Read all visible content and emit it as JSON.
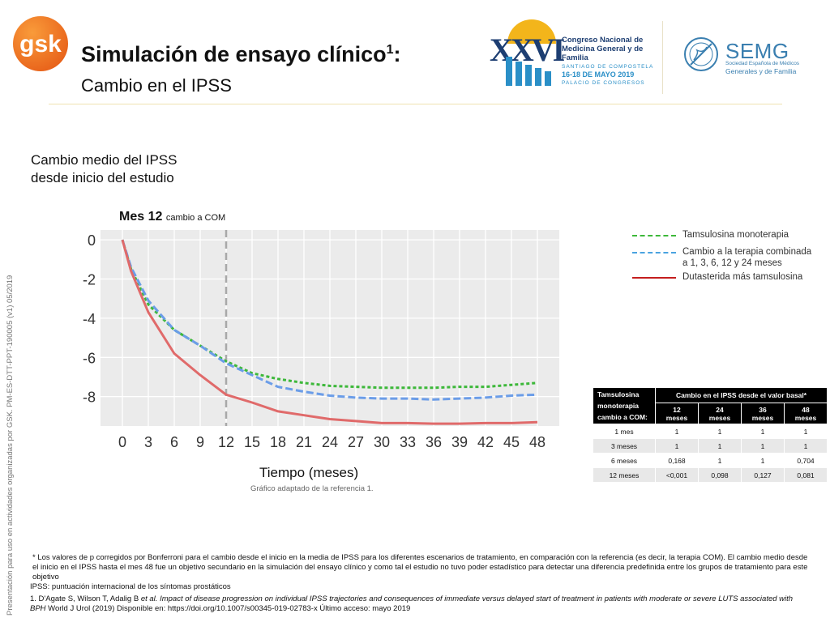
{
  "header": {
    "brand": "gsk",
    "title": "Simulación de ensayo clínico",
    "title_superscript": "1",
    "title_suffix": ":",
    "subtitle": "Cambio en el IPSS",
    "congress": {
      "number": "XXVI",
      "name": "Congreso Nacional de Medicina General y de Familia",
      "place": "SANTIAGO DE COMPOSTELA",
      "dates": "16-18 DE MAYO 2019",
      "venue": "PALACIO DE CONGRESOS"
    },
    "society": {
      "name": "SEMG",
      "subtitle_1": "Sociedad Española de Médicos",
      "subtitle_2": "Generales y de Familia"
    }
  },
  "side_note": "Presentación para uso en actividades organizadas por GSK. PM-ES-DTT-PPT-190005 (v1) 05/2019",
  "chart_heading_1": "Cambio medio del IPSS",
  "chart_heading_2": "desde inicio del estudio",
  "marker_label": {
    "bold": "Mes 12",
    "small": "cambio a COM"
  },
  "x_axis_title": "Tiempo (meses)",
  "source_note": "Gráfico adaptado de la referencia 1.",
  "colors": {
    "tamsulosina": "#3db83a",
    "cambio": "#6b9de8",
    "dutasterida": "#e06a6a",
    "legend_dutasterida": "#c41e1e",
    "plot_bg": "#ebebeb",
    "grid": "#ffffff",
    "vline": "#a8a8a8"
  },
  "chart_data": {
    "type": "line",
    "xlabel": "Tiempo (meses)",
    "ylabel": "",
    "xlim": [
      0,
      48
    ],
    "ylim": [
      -9.5,
      0.5
    ],
    "xticks": [
      0,
      3,
      6,
      9,
      12,
      15,
      18,
      21,
      24,
      27,
      30,
      33,
      36,
      39,
      42,
      45,
      48
    ],
    "yticks": [
      0,
      -2,
      -4,
      -6,
      -8
    ],
    "grid": true,
    "vline": 12,
    "legend_position": "right",
    "series": [
      {
        "name": "Tamsulosina monoterapia",
        "style": "dotted",
        "x": [
          0,
          1,
          3,
          6,
          9,
          12,
          15,
          18,
          21,
          24,
          27,
          30,
          33,
          36,
          39,
          42,
          45,
          48
        ],
        "y": [
          0,
          -1.5,
          -3.3,
          -4.6,
          -5.4,
          -6.2,
          -6.8,
          -7.1,
          -7.3,
          -7.45,
          -7.5,
          -7.55,
          -7.55,
          -7.55,
          -7.5,
          -7.5,
          -7.4,
          -7.3
        ]
      },
      {
        "name": "Cambio a la terapia combinada a 1, 3, 6, 12 y 24 meses",
        "style": "dashed",
        "x": [
          0,
          1,
          3,
          6,
          9,
          12,
          15,
          18,
          21,
          24,
          27,
          30,
          33,
          36,
          39,
          42,
          45,
          48
        ],
        "y": [
          0,
          -1.4,
          -3.1,
          -4.6,
          -5.4,
          -6.3,
          -6.9,
          -7.5,
          -7.75,
          -7.95,
          -8.05,
          -8.1,
          -8.1,
          -8.15,
          -8.1,
          -8.05,
          -7.95,
          -7.9
        ]
      },
      {
        "name": "Dutasterida más tamsulosina",
        "style": "solid",
        "x": [
          0,
          1,
          3,
          6,
          9,
          12,
          15,
          18,
          21,
          24,
          27,
          30,
          33,
          36,
          39,
          42,
          45,
          48
        ],
        "y": [
          0,
          -1.6,
          -3.7,
          -5.8,
          -6.9,
          -7.9,
          -8.3,
          -8.75,
          -8.95,
          -9.15,
          -9.25,
          -9.35,
          -9.35,
          -9.38,
          -9.38,
          -9.35,
          -9.35,
          -9.3
        ]
      }
    ]
  },
  "legend": [
    {
      "label": "Tamsulosina monoterapia"
    },
    {
      "label_1": "Cambio a la terapia combinada",
      "label_2": "a 1, 3, 6, 12 y 24 meses"
    },
    {
      "label": "Dutasterida más tamsulosina"
    }
  ],
  "table": {
    "corner_1": "Tamsulosina",
    "corner_2": "monoterapia",
    "corner_3": "cambio a COM:",
    "group_header": "Cambio en el IPSS desde el valor basal*",
    "columns": [
      {
        "top": "12",
        "bottom": "meses"
      },
      {
        "top": "24",
        "bottom": "meses"
      },
      {
        "top": "36",
        "bottom": "meses"
      },
      {
        "top": "48",
        "bottom": "meses"
      }
    ],
    "rows": [
      {
        "label": "1 mes",
        "values": [
          "1",
          "1",
          "1",
          "1"
        ]
      },
      {
        "label": "3 meses",
        "values": [
          "1",
          "1",
          "1",
          "1"
        ]
      },
      {
        "label": "6 meses",
        "values": [
          "0,168",
          "1",
          "1",
          "0,704"
        ]
      },
      {
        "label": "12 meses",
        "values": [
          "<0,001",
          "0,098",
          "0,127",
          "0,081"
        ]
      }
    ]
  },
  "footnotes": {
    "p_values": "* Los valores de p corregidos por Bonferroni para el cambio desde el inicio en la media de IPSS para los diferentes escenarios de tratamiento, en comparación con la referencia (es decir, la terapia COM). El cambio medio desde el inicio en el IPSS hasta el mes 48 fue un objetivo secundario en la simulación del ensayo clínico y como tal el estudio no tuvo poder estadístico para detectar una diferencia predefinida entre los grupos de tratamiento para este objetivo",
    "ipss": "IPSS: puntuación internacional de los síntomas prostáticos",
    "ref_authors": "1. D'Agate S, Wilson T, Adalig B ",
    "ref_etal": "et al.",
    "ref_title": " Impact of disease progression on individual IPSS trajectories and consequences of immediate versus delayed start of treatment in patients with moderate or severe LUTS associated with BPH",
    "ref_tail": " World J Urol (2019) Disponible en: https://doi.org/10.1007/s00345-019-02783-x Último acceso: mayo 2019"
  }
}
